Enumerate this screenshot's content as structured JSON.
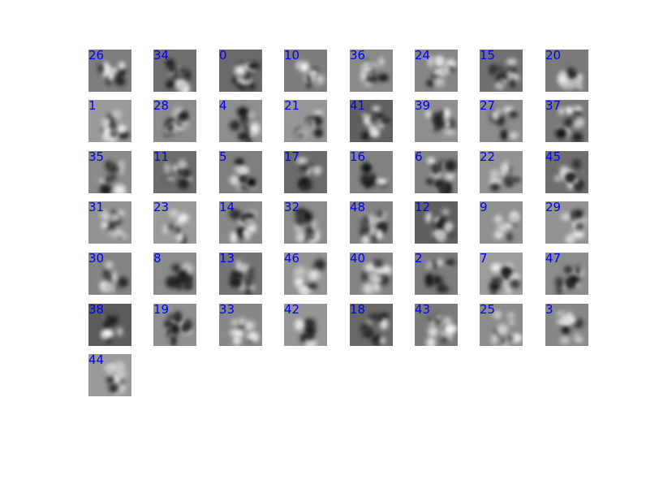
{
  "filters": {
    "label_color": "#0000ff",
    "rows": [
      [
        {
          "label": "26",
          "bg": "#7d7d7d"
        },
        {
          "label": "34",
          "bg": "#6f6f6f"
        },
        {
          "label": "0",
          "bg": "#6a6a6a"
        },
        {
          "label": "10",
          "bg": "#7c7c7c"
        },
        {
          "label": "36",
          "bg": "#8a8a8a"
        },
        {
          "label": "24",
          "bg": "#868686"
        },
        {
          "label": "15",
          "bg": "#707070"
        },
        {
          "label": "20",
          "bg": "#7a7a7a"
        }
      ],
      [
        {
          "label": "1",
          "bg": "#9a9a9a"
        },
        {
          "label": "28",
          "bg": "#8c8c8c"
        },
        {
          "label": "4",
          "bg": "#8e8e8e"
        },
        {
          "label": "21",
          "bg": "#979797"
        },
        {
          "label": "41",
          "bg": "#606060"
        },
        {
          "label": "39",
          "bg": "#8f8f8f"
        },
        {
          "label": "27",
          "bg": "#8c8c8c"
        },
        {
          "label": "37",
          "bg": "#787878"
        }
      ],
      [
        {
          "label": "35",
          "bg": "#8a8a8a"
        },
        {
          "label": "11",
          "bg": "#6c6c6c"
        },
        {
          "label": "5",
          "bg": "#7f7f7f"
        },
        {
          "label": "17",
          "bg": "#6a6a6a"
        },
        {
          "label": "16",
          "bg": "#828282"
        },
        {
          "label": "6",
          "bg": "#838383"
        },
        {
          "label": "22",
          "bg": "#939393"
        },
        {
          "label": "45",
          "bg": "#6e6e6e"
        }
      ],
      [
        {
          "label": "31",
          "bg": "#939393"
        },
        {
          "label": "23",
          "bg": "#9a9a9a"
        },
        {
          "label": "14",
          "bg": "#888888"
        },
        {
          "label": "32",
          "bg": "#8b8b8b"
        },
        {
          "label": "48",
          "bg": "#838383"
        },
        {
          "label": "12",
          "bg": "#5f5f5f"
        },
        {
          "label": "9",
          "bg": "#909090"
        },
        {
          "label": "29",
          "bg": "#939393"
        }
      ],
      [
        {
          "label": "30",
          "bg": "#848484"
        },
        {
          "label": "8",
          "bg": "#8b8b8b"
        },
        {
          "label": "13",
          "bg": "#747474"
        },
        {
          "label": "46",
          "bg": "#939393"
        },
        {
          "label": "40",
          "bg": "#858585"
        },
        {
          "label": "2",
          "bg": "#7c7c7c"
        },
        {
          "label": "7",
          "bg": "#9c9c9c"
        },
        {
          "label": "47",
          "bg": "#8c8c8c"
        }
      ],
      [
        {
          "label": "38",
          "bg": "#5c5c5c"
        },
        {
          "label": "19",
          "bg": "#8f8f8f"
        },
        {
          "label": "33",
          "bg": "#888888"
        },
        {
          "label": "42",
          "bg": "#969696"
        },
        {
          "label": "18",
          "bg": "#686868"
        },
        {
          "label": "43",
          "bg": "#7a7a7a"
        },
        {
          "label": "25",
          "bg": "#8c8c8c"
        },
        {
          "label": "3",
          "bg": "#888888"
        }
      ],
      [
        {
          "label": "44",
          "bg": "#9a9a9a"
        }
      ]
    ]
  }
}
